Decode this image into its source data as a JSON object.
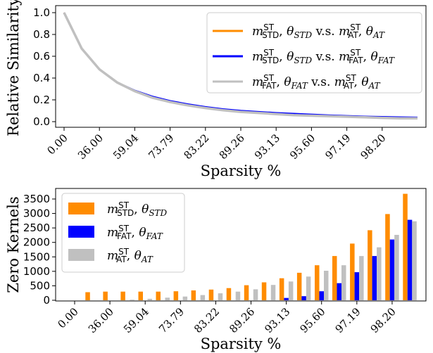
{
  "chart_data": [
    {
      "type": "line",
      "ylabel": "Relative Similarity",
      "xlabel": "Sparsity %",
      "xtick_labels": [
        "0.00",
        "36.00",
        "59.04",
        "73.79",
        "83.22",
        "89.26",
        "93.13",
        "95.60",
        "97.19",
        "98.20"
      ],
      "yticks": [
        "0.0",
        "0.2",
        "0.4",
        "0.6",
        "0.8",
        "1.0"
      ],
      "ylim": [
        0,
        1.05
      ],
      "grid": false,
      "legend": "top-right",
      "series": [
        {
          "name": "m_STD^ST, θ_STD v.s. m_AT^ST, θ_AT",
          "color": "#ff8c00",
          "values": [
            1.0,
            0.67,
            0.48,
            0.36,
            0.28,
            0.22,
            0.18,
            0.15,
            0.125,
            0.105,
            0.09,
            0.08,
            0.07,
            0.06,
            0.055,
            0.05,
            0.045,
            0.04,
            0.035,
            0.03,
            0.03
          ]
        },
        {
          "name": "m_STD^ST, θ_STD v.s. m_FAT^ST, θ_FAT",
          "color": "#0000ff",
          "values": [
            1.0,
            0.67,
            0.48,
            0.36,
            0.285,
            0.23,
            0.19,
            0.16,
            0.135,
            0.115,
            0.1,
            0.09,
            0.08,
            0.072,
            0.065,
            0.058,
            0.052,
            0.047,
            0.043,
            0.04,
            0.038
          ]
        },
        {
          "name": "m_FAT^ST, θ_FAT v.s. m_AT^ST, θ_AT",
          "color": "#c0c0c0",
          "values": [
            1.0,
            0.67,
            0.48,
            0.36,
            0.28,
            0.22,
            0.18,
            0.15,
            0.125,
            0.105,
            0.09,
            0.08,
            0.07,
            0.06,
            0.055,
            0.05,
            0.045,
            0.04,
            0.035,
            0.03,
            0.03
          ]
        }
      ]
    },
    {
      "type": "bar",
      "ylabel": "Zero Kernels",
      "xlabel": "Sparsity %",
      "xtick_labels": [
        "0.00",
        "36.00",
        "59.04",
        "73.79",
        "83.22",
        "89.26",
        "93.13",
        "95.60",
        "97.19",
        "98.20"
      ],
      "yticks": [
        "0",
        "500",
        "1000",
        "1500",
        "2000",
        "2500",
        "3000",
        "3500"
      ],
      "ylim": [
        0,
        3800
      ],
      "grid": false,
      "legend": "top-left",
      "series": [
        {
          "name": "m_STD^ST, θ_STD",
          "color": "#ff8c00",
          "values": [
            0,
            280,
            300,
            300,
            300,
            300,
            310,
            340,
            370,
            420,
            520,
            620,
            760,
            950,
            1210,
            1530,
            1960,
            2420,
            2980,
            3680
          ]
        },
        {
          "name": "m_FAT^ST, θ_FAT",
          "color": "#0000ff",
          "values": [
            0,
            0,
            0,
            0,
            0,
            0,
            0,
            0,
            0,
            0,
            0,
            0,
            80,
            140,
            310,
            590,
            970,
            1530,
            2100,
            2780
          ]
        },
        {
          "name": "m_AT^ST, θ_AT",
          "color": "#c0c0c0",
          "values": [
            0,
            0,
            0,
            20,
            50,
            90,
            130,
            180,
            240,
            300,
            380,
            530,
            650,
            820,
            1020,
            1210,
            1530,
            1830,
            2260,
            2730
          ]
        }
      ]
    }
  ],
  "legend_symbols": {
    "m": "m",
    "sup": "ST",
    "theta": "θ",
    "vs": " v.s. ",
    "STD": "STD",
    "FAT": "FAT",
    "AT": "AT"
  }
}
